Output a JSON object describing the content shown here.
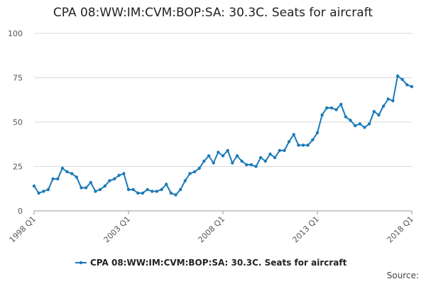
{
  "chart_data": {
    "type": "line",
    "title": "CPA 08:WW:IM:CVM:BOP:SA: 30.3C. Seats for aircraft",
    "xlabel": "",
    "ylabel": "",
    "ylim": [
      0,
      100
    ],
    "yticks": [
      "0",
      "25",
      "50",
      "75",
      "100"
    ],
    "xticks": [
      "1998 Q1",
      "2003 Q1",
      "2008 Q1",
      "2013 Q1",
      "2018 Q1"
    ],
    "grid": "horizontal",
    "legend_position": "bottom",
    "source_label": "Source:",
    "series": [
      {
        "name": "CPA 08:WW:IM:CVM:BOP:SA: 30.3C. Seats for aircraft",
        "color": "#1a7ab8",
        "x": [
          "1998 Q1",
          "1998 Q2",
          "1998 Q3",
          "1998 Q4",
          "1999 Q1",
          "1999 Q2",
          "1999 Q3",
          "1999 Q4",
          "2000 Q1",
          "2000 Q2",
          "2000 Q3",
          "2000 Q4",
          "2001 Q1",
          "2001 Q2",
          "2001 Q3",
          "2001 Q4",
          "2002 Q1",
          "2002 Q2",
          "2002 Q3",
          "2002 Q4",
          "2003 Q1",
          "2003 Q2",
          "2003 Q3",
          "2003 Q4",
          "2004 Q1",
          "2004 Q2",
          "2004 Q3",
          "2004 Q4",
          "2005 Q1",
          "2005 Q2",
          "2005 Q3",
          "2005 Q4",
          "2006 Q1",
          "2006 Q2",
          "2006 Q3",
          "2006 Q4",
          "2007 Q1",
          "2007 Q2",
          "2007 Q3",
          "2007 Q4",
          "2008 Q1",
          "2008 Q2",
          "2008 Q3",
          "2008 Q4",
          "2009 Q1",
          "2009 Q2",
          "2009 Q3",
          "2009 Q4",
          "2010 Q1",
          "2010 Q2",
          "2010 Q3",
          "2010 Q4",
          "2011 Q1",
          "2011 Q2",
          "2011 Q3",
          "2011 Q4",
          "2012 Q1",
          "2012 Q2",
          "2012 Q3",
          "2012 Q4",
          "2013 Q1",
          "2013 Q2",
          "2013 Q3",
          "2013 Q4",
          "2014 Q1",
          "2014 Q2",
          "2014 Q3",
          "2014 Q4",
          "2015 Q1",
          "2015 Q2",
          "2015 Q3",
          "2015 Q4",
          "2016 Q1",
          "2016 Q2",
          "2016 Q3",
          "2016 Q4",
          "2017 Q1",
          "2017 Q2",
          "2017 Q3",
          "2017 Q4",
          "2018 Q1"
        ],
        "values": [
          14,
          10,
          11,
          12,
          18,
          18,
          24,
          22,
          21,
          19,
          13,
          13,
          16,
          11,
          12,
          14,
          17,
          18,
          20,
          21,
          12,
          12,
          10,
          10,
          12,
          11,
          11,
          12,
          15,
          10,
          9,
          12,
          17,
          21,
          22,
          24,
          28,
          31,
          27,
          33,
          31,
          34,
          27,
          31,
          28,
          26,
          26,
          25,
          30,
          28,
          32,
          30,
          34,
          34,
          39,
          43,
          37,
          37,
          37,
          40,
          44,
          54,
          58,
          58,
          57,
          60,
          53,
          51,
          48,
          49,
          47,
          49,
          56,
          54,
          59,
          63,
          62,
          76,
          74,
          71,
          70
        ]
      }
    ]
  }
}
